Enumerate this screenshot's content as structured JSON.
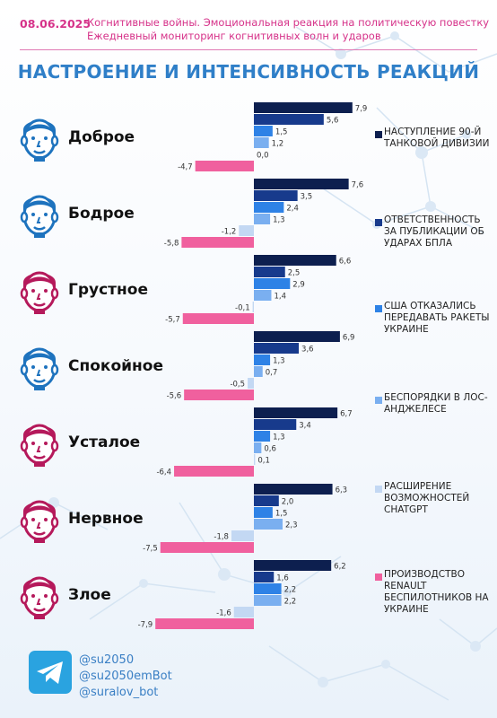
{
  "header": {
    "date": "08.06.2025",
    "line1": "Когнитивные войны. Эмоциональная реакция на политическую повестку",
    "line2": "Ежедневный мониторинг когнитивных волн и ударов"
  },
  "title": "НАСТРОЕНИЕ И ИНТЕНСИВНОСТЬ РЕАКЦИЙ",
  "moods": [
    {
      "label": "Доброе",
      "face": "calm-face-icon",
      "color": "#1e73be"
    },
    {
      "label": "Бодрое",
      "face": "girl-face-icon",
      "color": "#1e73be"
    },
    {
      "label": "Грустное",
      "face": "sad-face-icon",
      "color": "#b5195b"
    },
    {
      "label": "Спокойное",
      "face": "relaxed-face-icon",
      "color": "#1e73be"
    },
    {
      "label": "Усталое",
      "face": "tired-face-icon",
      "color": "#b5195b"
    },
    {
      "label": "Нервное",
      "face": "nervous-face-icon",
      "color": "#b5195b"
    },
    {
      "label": "Злое",
      "face": "angry-face-icon",
      "color": "#b5195b"
    }
  ],
  "chart_data": {
    "type": "bar",
    "orientation": "horizontal",
    "categories": [
      "Доброе",
      "Бодрое",
      "Грустное",
      "Спокойное",
      "Усталое",
      "Нервное",
      "Злое"
    ],
    "series": [
      {
        "name": "НАСТУПЛЕНИЕ 90-Й ТАНКОВОЙ ДИВИЗИИ",
        "color": "#0d1f4f",
        "values": [
          7.9,
          7.6,
          6.6,
          6.9,
          6.7,
          6.3,
          6.2
        ]
      },
      {
        "name": "ОТВЕТСТВЕННОСТЬ ЗА ПУБЛИКАЦИИ ОБ УДАРАХ БПЛА",
        "color": "#173a8c",
        "values": [
          5.6,
          3.5,
          2.5,
          3.6,
          3.4,
          2.0,
          1.6
        ]
      },
      {
        "name": "США ОТКАЗАЛИСЬ ПЕРЕДАВАТЬ РАКЕТЫ УКРАИНЕ",
        "color": "#2e82e6",
        "values": [
          1.5,
          2.4,
          2.9,
          1.3,
          1.3,
          1.5,
          2.2
        ]
      },
      {
        "name": "БЕСПОРЯДКИ В ЛОС-АНДЖЕЛЕСЕ",
        "color": "#7aaff0",
        "values": [
          1.2,
          1.3,
          1.4,
          0.7,
          0.6,
          2.3,
          2.2
        ]
      },
      {
        "name": "РАСШИРЕНИЕ ВОЗМОЖНОСТЕЙ CHATGPT",
        "color": "#c3d8f3",
        "values": [
          0.0,
          -1.2,
          -0.1,
          -0.5,
          0.1,
          -1.8,
          -1.6
        ]
      },
      {
        "name": "ПРОИЗВОДСТВО RENAULT БЕСПИЛОТНИКОВ НА УКРАИНЕ",
        "color": "#f0609e",
        "values": [
          -4.7,
          -5.8,
          -5.7,
          -5.6,
          -6.4,
          -7.5,
          -7.9
        ]
      }
    ],
    "value_labels": [
      [
        "7,9",
        "5,6",
        "1,5",
        "1,2",
        "0,0",
        "-4,7"
      ],
      [
        "7,6",
        "3,5",
        "2,4",
        "1,3",
        "-1,2",
        "-5,8"
      ],
      [
        "6,6",
        "2,5",
        "2,9",
        "1,4",
        "-0,1",
        "-5,7"
      ],
      [
        "6,9",
        "3,6",
        "1,3",
        "0,7",
        "-0,5",
        "-5,6"
      ],
      [
        "6,7",
        "3,4",
        "1,3",
        "0,6",
        "0,1",
        "-6,4"
      ],
      [
        "6,3",
        "2,0",
        "1,5",
        "2,3",
        "-1,8",
        "-7,5"
      ],
      [
        "6,2",
        "1,6",
        "2,2",
        "2,2",
        "-1,6",
        "-7,9"
      ]
    ],
    "title": "НАСТРОЕНИЕ И ИНТЕНСИВНОСТЬ РЕАКЦИЙ",
    "legend_position": "right",
    "grid": false
  },
  "legend": [
    {
      "label": "НАСТУПЛЕНИЕ 90-Й ТАНКОВОЙ ДИВИЗИИ",
      "color": "#0d1f4f"
    },
    {
      "label": "ОТВЕТСТВЕННОСТЬ ЗА ПУБЛИКАЦИИ ОБ УДАРАХ БПЛА",
      "color": "#173a8c"
    },
    {
      "label": "США ОТКАЗАЛИСЬ ПЕРЕДАВАТЬ РАКЕТЫ УКРАИНЕ",
      "color": "#2e82e6"
    },
    {
      "label": "БЕСПОРЯДКИ В ЛОС-АНДЖЕЛЕСЕ",
      "color": "#7aaff0"
    },
    {
      "label": "РАСШИРЕНИЕ ВОЗМОЖНОСТЕЙ CHATGPT",
      "color": "#c3d8f3"
    },
    {
      "label": "ПРОИЗВОДСТВО RENAULT БЕСПИЛОТНИКОВ НА УКРАИНЕ",
      "color": "#f0609e"
    }
  ],
  "footer": {
    "logo": "telegram-icon",
    "handles": [
      "@su2050",
      "@su2050emBot",
      "@suralov_bot"
    ]
  },
  "colors": {
    "accent": "#d6338a",
    "title": "#2f7fc8",
    "handle": "#3a7fc4"
  }
}
